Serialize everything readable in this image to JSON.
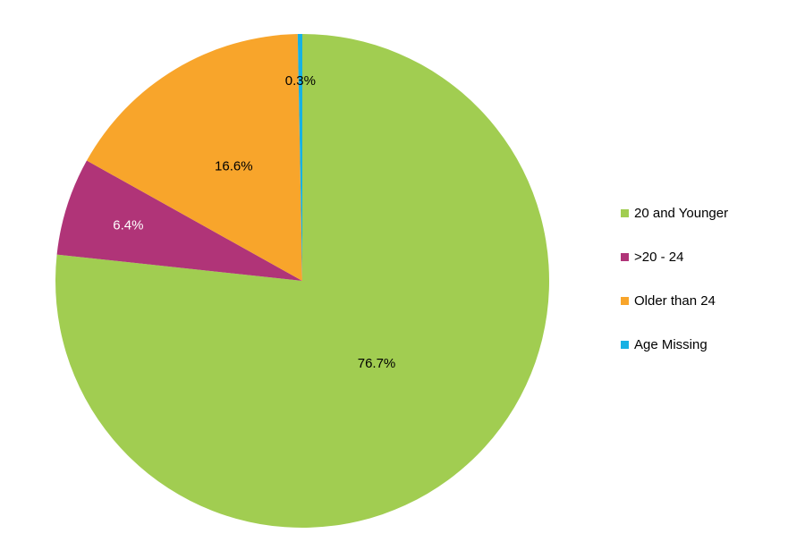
{
  "chart_data": {
    "type": "pie",
    "title": "",
    "legend_position": "right",
    "start_angle_deg": 0,
    "direction": "clockwise",
    "slices": [
      {
        "name": "20 and Younger",
        "value": 76.7,
        "label": "76.7%",
        "color": "#A1CD51",
        "label_color": "#000000"
      },
      {
        "name": ">20 - 24",
        "value": 6.4,
        "label": "6.4%",
        "color": "#B03478",
        "label_color": "#ffffff"
      },
      {
        "name": "Older than 24",
        "value": 16.6,
        "label": "16.6%",
        "color": "#F8A52B",
        "label_color": "#000000"
      },
      {
        "name": "Age Missing",
        "value": 0.3,
        "label": "0.3%",
        "color": "#17B1E4",
        "label_color": "#000000"
      }
    ]
  }
}
